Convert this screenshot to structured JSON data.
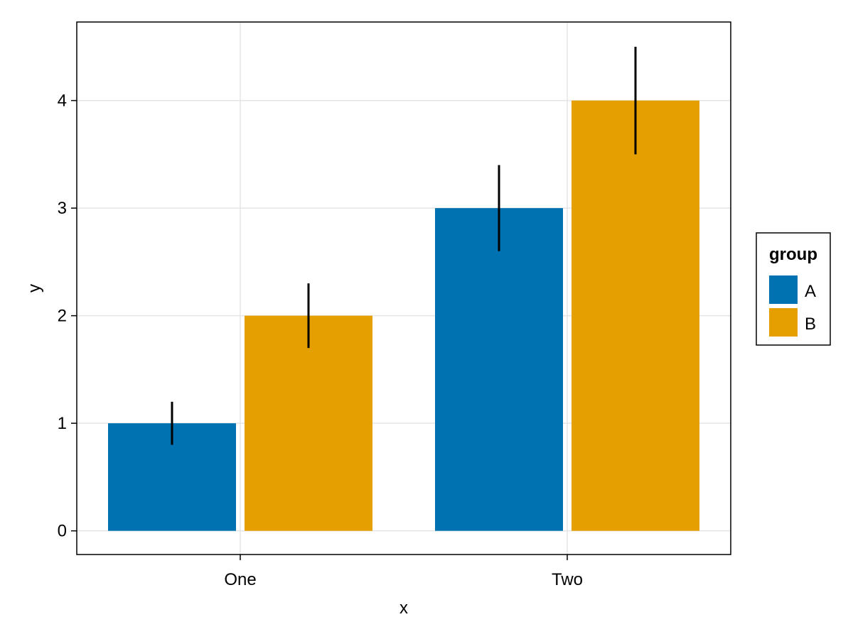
{
  "chart_data": {
    "type": "bar",
    "title": "",
    "xlabel": "x",
    "ylabel": "y",
    "categories": [
      "One",
      "Two"
    ],
    "series": [
      {
        "name": "A",
        "color": "#0072b2",
        "values": [
          1,
          3
        ],
        "error_low": [
          0.8,
          2.6
        ],
        "error_high": [
          1.2,
          3.4
        ]
      },
      {
        "name": "B",
        "color": "#e69f00",
        "values": [
          2,
          4
        ],
        "error_low": [
          1.7,
          3.5
        ],
        "error_high": [
          2.3,
          4.5
        ]
      }
    ],
    "ylim": [
      -0.22,
      4.73
    ],
    "yticks": [
      "0",
      "1",
      "2",
      "3",
      "4"
    ],
    "grid": true,
    "legend": {
      "title": "group",
      "placement": "right"
    }
  }
}
